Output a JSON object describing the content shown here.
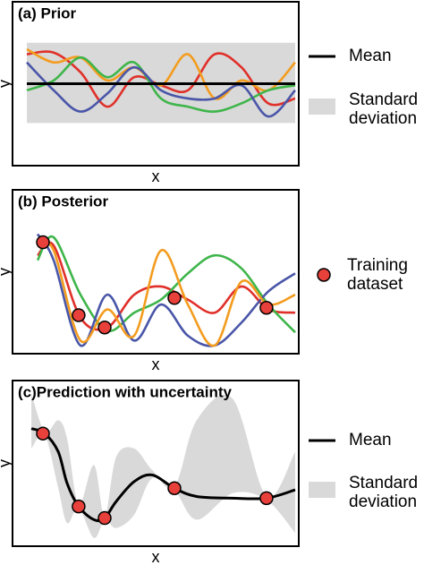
{
  "chart_data": [
    {
      "type": "line",
      "title": "(a) Prior",
      "x_label": "x",
      "y_label": "y",
      "xlim": [
        0,
        10
      ],
      "ylim": [
        0,
        10
      ],
      "x": [
        0,
        1,
        2,
        3,
        4,
        5,
        6,
        7,
        8,
        9,
        10
      ],
      "series": [
        {
          "name": "Mean",
          "color": "#000000",
          "values": [
            5,
            5,
            5,
            5,
            5,
            5,
            5,
            5,
            5,
            5,
            5
          ]
        },
        {
          "name": "Standard deviation",
          "color": "#d9d9d9",
          "lower": [
            2.6,
            2.6,
            2.6,
            2.6,
            2.6,
            2.6,
            2.6,
            2.6,
            2.6,
            2.6,
            2.6
          ],
          "upper": [
            7.5,
            7.5,
            7.5,
            7.5,
            7.5,
            7.5,
            7.5,
            7.5,
            7.5,
            7.5,
            7.5
          ]
        },
        {
          "color": "#e0302a",
          "values": [
            6.8,
            6.9,
            5.7,
            3.6,
            5.4,
            4.9,
            4.6,
            6.8,
            6.0,
            3.8,
            4.1
          ]
        },
        {
          "color": "#f39c1f",
          "values": [
            7.1,
            6.3,
            6.6,
            5.2,
            6.0,
            4.9,
            6.8,
            4.1,
            5.2,
            4.6,
            6.3
          ]
        },
        {
          "color": "#3fb54a",
          "values": [
            4.6,
            5.2,
            6.6,
            5.4,
            6.3,
            4.1,
            3.6,
            3.3,
            3.8,
            4.6,
            4.9
          ]
        },
        {
          "color": "#4a56a8",
          "values": [
            6.3,
            4.6,
            3.3,
            4.4,
            6.0,
            4.6,
            4.1,
            4.1,
            4.9,
            3.0,
            4.6
          ]
        }
      ]
    },
    {
      "type": "line",
      "title": "(b) Posterior",
      "x_label": "x",
      "y_label": "y",
      "xlim": [
        0,
        10
      ],
      "ylim": [
        0,
        10
      ],
      "x": [
        0.4,
        1,
        2,
        3,
        4,
        5,
        6,
        7,
        8,
        9,
        10
      ],
      "series": [
        {
          "name": "Training dataset",
          "color": "#e8403a",
          "mode": "markers",
          "x": [
            0.6,
            1.93,
            2.9,
            5.5,
            8.93
          ],
          "values": [
            6.8,
            2.35,
            1.6,
            3.4,
            2.8
          ]
        },
        {
          "color": "#e0302a",
          "values": [
            6.0,
            6.6,
            2.2,
            1.6,
            3.6,
            4.1,
            3.3,
            2.5,
            4.1,
            2.7,
            2.5
          ]
        },
        {
          "color": "#3fb54a",
          "values": [
            5.7,
            7.1,
            3.6,
            1.4,
            2.5,
            3.3,
            4.9,
            6.0,
            5.2,
            3.0,
            1.3
          ]
        },
        {
          "color": "#4a56a8",
          "values": [
            7.3,
            5.7,
            0.5,
            3.6,
            0.8,
            3.0,
            1.1,
            0.5,
            1.9,
            3.8,
            4.9
          ]
        },
        {
          "color": "#f39c1f",
          "values": [
            6.6,
            6.3,
            0.8,
            2.7,
            1.1,
            6.3,
            3.0,
            0.5,
            4.4,
            3.0,
            3.6
          ]
        }
      ]
    },
    {
      "type": "line",
      "title": "(c)Prediction with uncertainty",
      "x_label": "x",
      "y_label": "y",
      "xlim": [
        0,
        10
      ],
      "ylim": [
        0,
        10
      ],
      "x": [
        0.17,
        0.67,
        1.17,
        1.5,
        1.93,
        2.5,
        2.9,
        3.33,
        4,
        4.67,
        5.5,
        6.33,
        7.67,
        8.93,
        10
      ],
      "series": [
        {
          "name": "Mean",
          "color": "#000000",
          "values": [
            7.1,
            6.8,
            5.7,
            3.8,
            2.4,
            1.6,
            1.7,
            2.7,
            3.9,
            4.3,
            3.5,
            3.0,
            2.9,
            2.9,
            3.4
          ]
        },
        {
          "name": "Standard deviation",
          "color": "#d9d9d9",
          "lower": [
            5.9,
            6.7,
            3.5,
            1.4,
            2.3,
            0.5,
            1.6,
            1.1,
            1.9,
            4.1,
            3.4,
            1.6,
            3.2,
            2.8,
            0.8
          ],
          "upper": [
            9.2,
            6.9,
            7.6,
            6.5,
            2.5,
            4.9,
            1.8,
            5.4,
            5.9,
            4.6,
            3.6,
            7.6,
            8.9,
            3.0,
            5.7
          ]
        },
        {
          "name": null,
          "mode": "markers",
          "color": "#e8403a",
          "x": [
            0.6,
            1.93,
            2.9,
            5.5,
            8.93
          ],
          "values": [
            6.8,
            2.4,
            1.7,
            3.5,
            2.9
          ]
        }
      ]
    }
  ]
}
